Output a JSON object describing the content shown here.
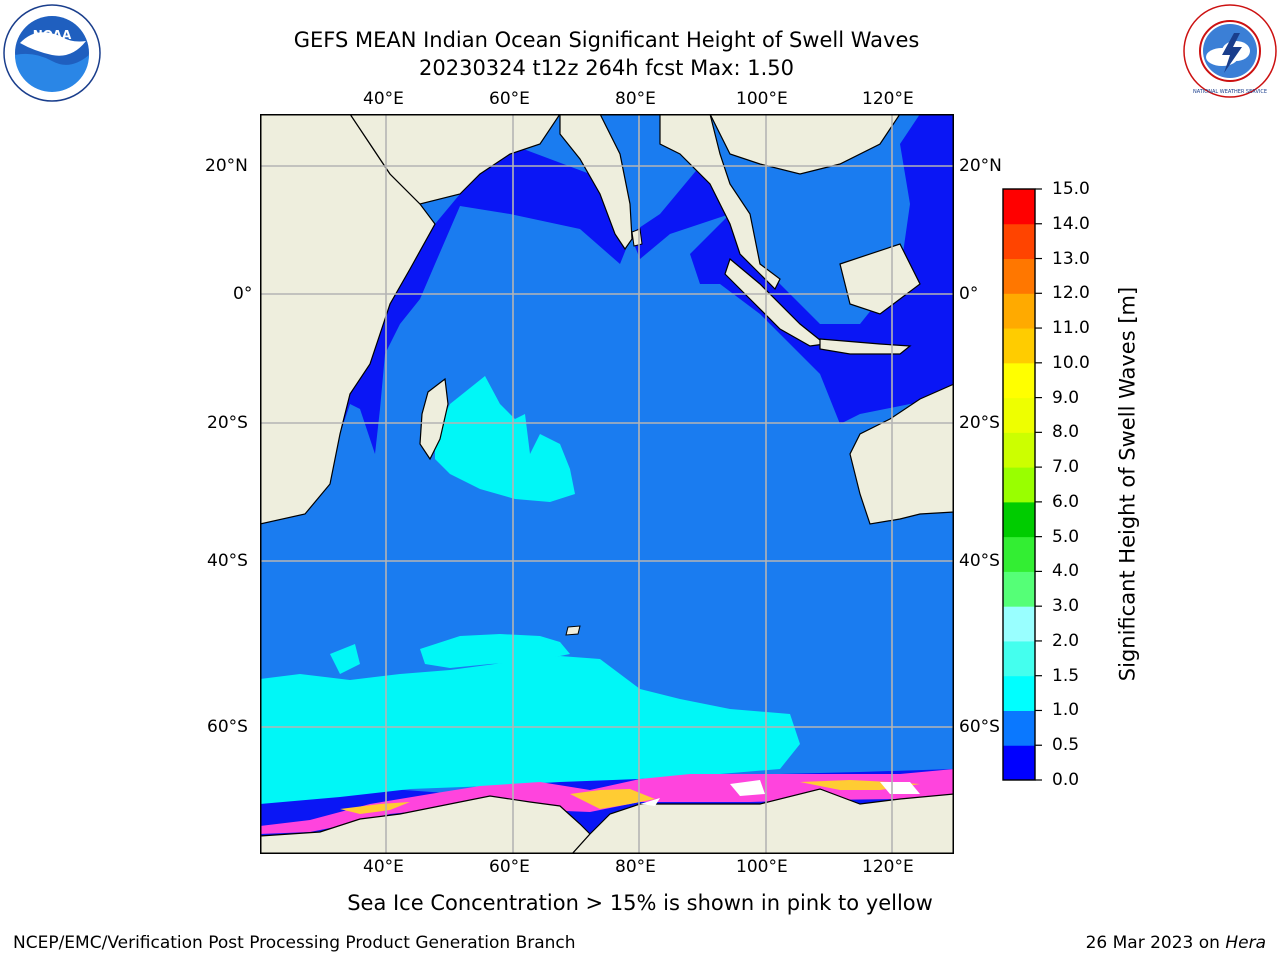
{
  "header": {
    "title": "GEFS MEAN Indian Ocean Significant Height of Swell Waves",
    "subtitle": "20230324 t12z 264h fcst   Max: 1.50"
  },
  "logos": {
    "left": {
      "text": "NOAA"
    },
    "right": {
      "text": "NATIONAL WEATHER SERVICE"
    }
  },
  "map": {
    "lon_labels": [
      "40°E",
      "60°E",
      "80°E",
      "100°E",
      "120°E"
    ],
    "lat_labels": [
      "20°N",
      "0°",
      "20°S",
      "40°S",
      "60°S"
    ],
    "colors": {
      "land": "#eeeedd",
      "ocean_low": "#0a16f5",
      "ocean_mid": "#1a7cf0",
      "ocean_high": "#00f7f7",
      "ocean_higher": "#78f5f0",
      "ice": "#ff44dd",
      "ice_high": "#ffcc33"
    }
  },
  "colorbar": {
    "label": "Significant Height of Swell Waves [m]",
    "ticks": [
      "0.0",
      "0.5",
      "1.0",
      "1.5",
      "2.0",
      "3.0",
      "4.0",
      "5.0",
      "6.0",
      "7.0",
      "8.0",
      "9.0",
      "10.0",
      "11.0",
      "12.0",
      "13.0",
      "14.0",
      "15.0"
    ],
    "colors": [
      "#0000ff",
      "#0a78ff",
      "#00ffff",
      "#44ffee",
      "#99ffff",
      "#55ff77",
      "#33ee33",
      "#00cc00",
      "#99ff00",
      "#ccff00",
      "#eeff00",
      "#ffff00",
      "#ffcc00",
      "#ffaa00",
      "#ff7700",
      "#ff4400",
      "#ff0000"
    ]
  },
  "caption": "Sea Ice Concentration > 15% is shown in pink to yellow",
  "footer": {
    "left": "NCEP/EMC/Verification Post Processing Product Generation Branch",
    "right_prefix": "26 Mar 2023 on ",
    "right_host": "Hera"
  }
}
